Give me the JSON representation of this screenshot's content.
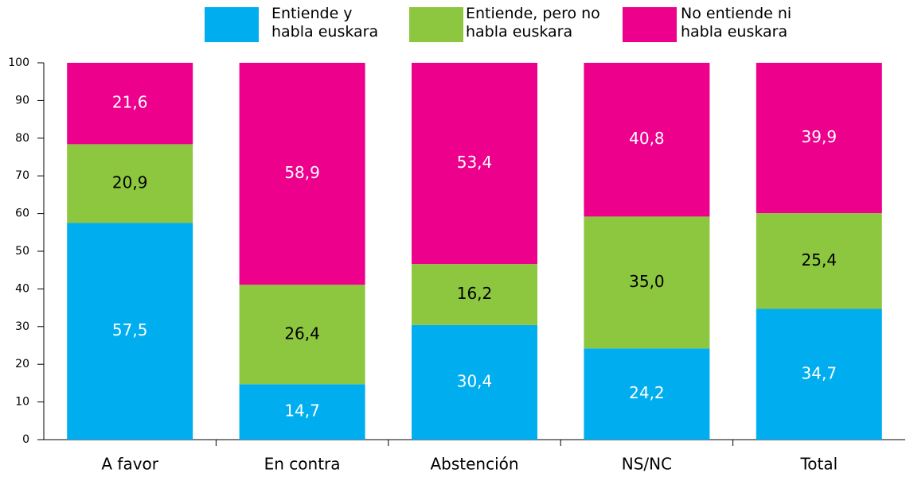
{
  "chart_data": {
    "type": "stacked_bar",
    "categories": [
      "A favor",
      "En contra",
      "Abstención",
      "NS/NC",
      "Total"
    ],
    "series": [
      {
        "name": "Entiende y habla euskara",
        "color": "#00aeef",
        "label_color": "#ffffff",
        "values": [
          57.5,
          14.7,
          30.4,
          24.2,
          34.7
        ],
        "value_labels": [
          "57,5",
          "14,7",
          "30,4",
          "24,2",
          "34,7"
        ]
      },
      {
        "name": "Entiende, pero no habla euskara",
        "color": "#8dc63f",
        "label_color": "#000000",
        "values": [
          20.9,
          26.4,
          16.2,
          35.0,
          25.4
        ],
        "value_labels": [
          "20,9",
          "26,4",
          "16,2",
          "35,0",
          "25,4"
        ]
      },
      {
        "name": "No entiende ni habla euskara",
        "color": "#ec008c",
        "label_color": "#ffffff",
        "values": [
          21.6,
          58.9,
          53.4,
          40.8,
          39.9
        ],
        "value_labels": [
          "21,6",
          "58,9",
          "53,4",
          "40,8",
          "39,9"
        ]
      }
    ],
    "ylim": [
      0,
      100
    ],
    "yticks": [
      0,
      10,
      20,
      30,
      40,
      50,
      60,
      70,
      80,
      90,
      100
    ]
  }
}
